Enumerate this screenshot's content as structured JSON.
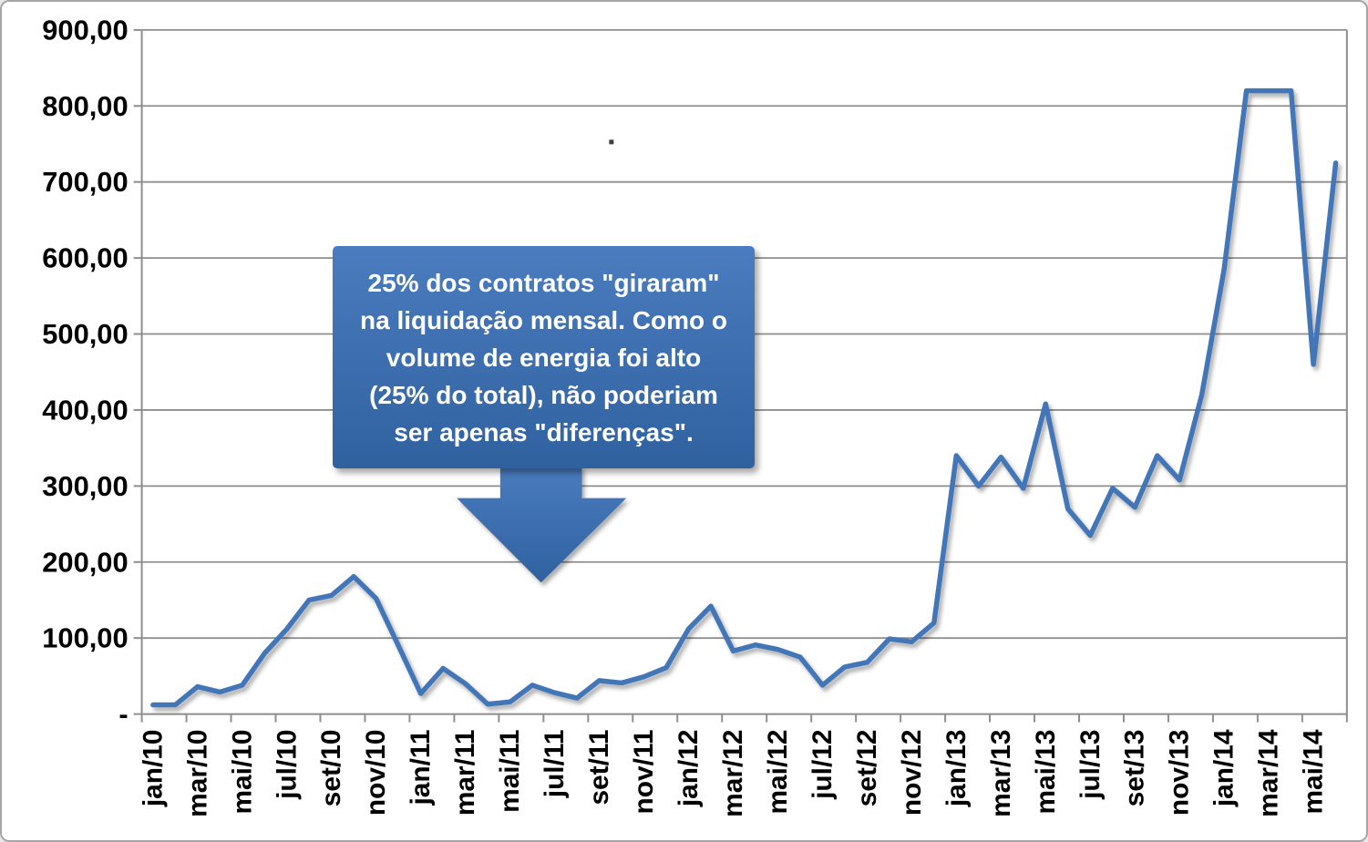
{
  "colors": {
    "line": "#4376B7",
    "grid": "#8E8E8E",
    "axis": "#8E8E8E",
    "label_text": "#000000",
    "frame_border": "#A6A6A6",
    "callout_fill_top": "#4A7CBF",
    "callout_fill_bottom": "#30619F"
  },
  "annotation": {
    "text": "25% dos contratos \"giraram\" na liquidação mensal. Como o volume de energia foi alto (25% do total), não poderiam ser apenas \"diferenças\".",
    "lines": [
      "25% dos contratos \"giraram\"",
      "na liquidação mensal. Como o",
      "volume de energia foi alto",
      "(25% do total), não poderiam",
      "ser apenas \"diferenças\"."
    ]
  },
  "chart_data": {
    "type": "line",
    "title": "",
    "xlabel": "",
    "ylabel": "",
    "grid": true,
    "legend": false,
    "ylim": [
      0,
      900
    ],
    "y_tick_step": 100,
    "y_tick_labels": [
      "-",
      "100,00",
      "200,00",
      "300,00",
      "400,00",
      "500,00",
      "600,00",
      "700,00",
      "800,00",
      "900,00"
    ],
    "x_label_rotation": -90,
    "x_tick_labels": [
      "jan/10",
      "mar/10",
      "mai/10",
      "jul/10",
      "set/10",
      "nov/10",
      "jan/11",
      "mar/11",
      "mai/11",
      "jul/11",
      "set/11",
      "nov/11",
      "jan/12",
      "mar/12",
      "mai/12",
      "jul/12",
      "set/12",
      "nov/12",
      "jan/13",
      "mar/13",
      "mai/13",
      "jul/13",
      "set/13",
      "nov/13",
      "jan/14",
      "mar/14",
      "mai/14"
    ],
    "x": [
      "jan/10",
      "fev/10",
      "mar/10",
      "abr/10",
      "mai/10",
      "jun/10",
      "jul/10",
      "ago/10",
      "set/10",
      "out/10",
      "nov/10",
      "dez/10",
      "jan/11",
      "fev/11",
      "mar/11",
      "abr/11",
      "mai/11",
      "jun/11",
      "jul/11",
      "ago/11",
      "set/11",
      "out/11",
      "nov/11",
      "dez/11",
      "jan/12",
      "fev/12",
      "mar/12",
      "abr/12",
      "mai/12",
      "jun/12",
      "jul/12",
      "ago/12",
      "set/12",
      "out/12",
      "nov/12",
      "dez/12",
      "jan/13",
      "fev/13",
      "mar/13",
      "abr/13",
      "mai/13",
      "jun/13",
      "jul/13",
      "ago/13",
      "set/13",
      "out/13",
      "nov/13",
      "dez/13",
      "jan/14",
      "fev/14",
      "mar/14",
      "abr/14",
      "mai/14",
      "jun/14"
    ],
    "values": [
      12,
      12,
      36,
      29,
      38,
      80,
      112,
      150,
      156,
      181,
      152,
      90,
      27,
      60,
      40,
      13,
      16,
      38,
      28,
      21,
      44,
      41,
      49,
      61,
      112,
      142,
      83,
      91,
      85,
      75,
      38,
      62,
      68,
      99,
      95,
      120,
      340,
      300,
      338,
      297,
      408,
      270,
      235,
      297,
      272,
      340,
      308,
      420,
      585,
      820,
      820,
      820,
      460,
      725
    ]
  }
}
